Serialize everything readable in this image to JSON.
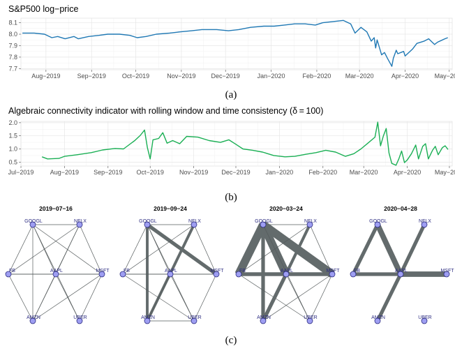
{
  "captions": {
    "a": "(a)",
    "b": "(b)",
    "c": "(c)"
  },
  "chart_data": [
    {
      "type": "line",
      "title": "S&P500 log−price",
      "x_tick_labels": [
        "Aug−2019",
        "Sep−2019",
        "Oct−2019",
        "Nov−2019",
        "Dec−2019",
        "Jan−2020",
        "Feb−2020",
        "Mar−2020",
        "Apr−2020",
        "May−2020"
      ],
      "x_tick_dates": [
        "2019-08-01",
        "2019-09-01",
        "2019-10-01",
        "2019-11-01",
        "2019-12-01",
        "2020-01-01",
        "2020-02-01",
        "2020-03-01",
        "2020-04-01",
        "2020-05-01"
      ],
      "xlim": [
        "2019-07-15",
        "2020-05-03"
      ],
      "y_tick_labels": [
        "7.7",
        "7.8",
        "7.9",
        "8.0",
        "8.1"
      ],
      "ylim": [
        7.69,
        8.14
      ],
      "color": "#1f78b4",
      "grid": true,
      "series": [
        {
          "points": [
            [
              "2019-07-16",
              8.01
            ],
            [
              "2019-07-24",
              8.01
            ],
            [
              "2019-07-31",
              8.0
            ],
            [
              "2019-08-05",
              7.97
            ],
            [
              "2019-08-09",
              7.98
            ],
            [
              "2019-08-14",
              7.96
            ],
            [
              "2019-08-20",
              7.98
            ],
            [
              "2019-08-23",
              7.96
            ],
            [
              "2019-08-30",
              7.98
            ],
            [
              "2019-09-06",
              7.99
            ],
            [
              "2019-09-12",
              8.0
            ],
            [
              "2019-09-20",
              8.0
            ],
            [
              "2019-09-27",
              7.99
            ],
            [
              "2019-10-02",
              7.97
            ],
            [
              "2019-10-08",
              7.98
            ],
            [
              "2019-10-15",
              8.0
            ],
            [
              "2019-10-24",
              8.01
            ],
            [
              "2019-10-31",
              8.02
            ],
            [
              "2019-11-08",
              8.03
            ],
            [
              "2019-11-15",
              8.04
            ],
            [
              "2019-11-25",
              8.04
            ],
            [
              "2019-12-03",
              8.03
            ],
            [
              "2019-12-10",
              8.04
            ],
            [
              "2019-12-18",
              8.06
            ],
            [
              "2019-12-27",
              8.07
            ],
            [
              "2020-01-03",
              8.07
            ],
            [
              "2020-01-10",
              8.08
            ],
            [
              "2020-01-17",
              8.09
            ],
            [
              "2020-01-24",
              8.09
            ],
            [
              "2020-01-31",
              8.08
            ],
            [
              "2020-02-05",
              8.1
            ],
            [
              "2020-02-12",
              8.11
            ],
            [
              "2020-02-19",
              8.12
            ],
            [
              "2020-02-24",
              8.09
            ],
            [
              "2020-02-27",
              8.01
            ],
            [
              "2020-03-02",
              8.06
            ],
            [
              "2020-03-06",
              8.02
            ],
            [
              "2020-03-09",
              7.94
            ],
            [
              "2020-03-11",
              7.97
            ],
            [
              "2020-03-12",
              7.88
            ],
            [
              "2020-03-13",
              7.95
            ],
            [
              "2020-03-16",
              7.82
            ],
            [
              "2020-03-18",
              7.84
            ],
            [
              "2020-03-20",
              7.79
            ],
            [
              "2020-03-23",
              7.72
            ],
            [
              "2020-03-24",
              7.79
            ],
            [
              "2020-03-26",
              7.86
            ],
            [
              "2020-03-27",
              7.83
            ],
            [
              "2020-03-31",
              7.85
            ],
            [
              "2020-04-01",
              7.81
            ],
            [
              "2020-04-06",
              7.87
            ],
            [
              "2020-04-09",
              7.92
            ],
            [
              "2020-04-14",
              7.94
            ],
            [
              "2020-04-17",
              7.96
            ],
            [
              "2020-04-21",
              7.91
            ],
            [
              "2020-04-23",
              7.93
            ],
            [
              "2020-04-28",
              7.96
            ],
            [
              "2020-04-30",
              7.97
            ]
          ]
        }
      ]
    },
    {
      "type": "line",
      "title": "Algebraic connectivity indicator with rolling window and time consistency (δ = 100)",
      "x_tick_labels": [
        "Jul−2019",
        "Aug−2019",
        "Sep−2019",
        "Oct−2019",
        "Nov−2019",
        "Dec−2019",
        "Jan−2020",
        "Feb−2020",
        "Mar−2020",
        "Apr−2020",
        "May−2020"
      ],
      "x_tick_dates": [
        "2019-07-01",
        "2019-08-01",
        "2019-09-01",
        "2019-10-01",
        "2019-11-01",
        "2019-12-01",
        "2020-01-01",
        "2020-02-01",
        "2020-03-01",
        "2020-04-01",
        "2020-05-01"
      ],
      "xlim": [
        "2019-07-01",
        "2020-05-03"
      ],
      "y_tick_labels": [
        "0.5",
        "1.0",
        "1.5",
        "2.0"
      ],
      "ylim": [
        0.35,
        2.05
      ],
      "color": "#1aaf54",
      "grid": true,
      "series": [
        {
          "points": [
            [
              "2019-07-16",
              0.7
            ],
            [
              "2019-07-20",
              0.62
            ],
            [
              "2019-07-28",
              0.64
            ],
            [
              "2019-08-01",
              0.72
            ],
            [
              "2019-08-10",
              0.78
            ],
            [
              "2019-08-20",
              0.86
            ],
            [
              "2019-08-28",
              0.96
            ],
            [
              "2019-09-06",
              1.02
            ],
            [
              "2019-09-12",
              1.0
            ],
            [
              "2019-09-17",
              1.2
            ],
            [
              "2019-09-20",
              1.32
            ],
            [
              "2019-09-24",
              1.52
            ],
            [
              "2019-09-27",
              1.72
            ],
            [
              "2019-09-29",
              1.05
            ],
            [
              "2019-10-01",
              0.62
            ],
            [
              "2019-10-03",
              1.35
            ],
            [
              "2019-10-07",
              1.4
            ],
            [
              "2019-10-10",
              1.62
            ],
            [
              "2019-10-13",
              1.22
            ],
            [
              "2019-10-17",
              1.32
            ],
            [
              "2019-10-22",
              1.2
            ],
            [
              "2019-10-27",
              1.48
            ],
            [
              "2019-11-04",
              1.45
            ],
            [
              "2019-11-12",
              1.32
            ],
            [
              "2019-11-20",
              1.25
            ],
            [
              "2019-11-26",
              1.35
            ],
            [
              "2019-12-01",
              1.18
            ],
            [
              "2019-12-06",
              1.0
            ],
            [
              "2019-12-13",
              0.95
            ],
            [
              "2019-12-20",
              0.88
            ],
            [
              "2019-12-28",
              0.75
            ],
            [
              "2020-01-05",
              0.7
            ],
            [
              "2020-01-12",
              0.72
            ],
            [
              "2020-01-20",
              0.8
            ],
            [
              "2020-01-27",
              0.86
            ],
            [
              "2020-02-03",
              0.95
            ],
            [
              "2020-02-10",
              0.88
            ],
            [
              "2020-02-17",
              0.72
            ],
            [
              "2020-02-23",
              0.82
            ],
            [
              "2020-02-28",
              1.0
            ],
            [
              "2020-03-04",
              1.22
            ],
            [
              "2020-03-09",
              1.45
            ],
            [
              "2020-03-11",
              2.02
            ],
            [
              "2020-03-13",
              1.12
            ],
            [
              "2020-03-15",
              1.5
            ],
            [
              "2020-03-17",
              1.78
            ],
            [
              "2020-03-19",
              0.85
            ],
            [
              "2020-03-21",
              0.45
            ],
            [
              "2020-03-24",
              0.38
            ],
            [
              "2020-03-26",
              0.62
            ],
            [
              "2020-03-28",
              0.92
            ],
            [
              "2020-03-30",
              0.48
            ],
            [
              "2020-04-01",
              0.58
            ],
            [
              "2020-04-04",
              0.82
            ],
            [
              "2020-04-07",
              1.15
            ],
            [
              "2020-04-09",
              0.62
            ],
            [
              "2020-04-12",
              1.1
            ],
            [
              "2020-04-14",
              1.2
            ],
            [
              "2020-04-16",
              0.62
            ],
            [
              "2020-04-19",
              0.95
            ],
            [
              "2020-04-21",
              1.1
            ],
            [
              "2020-04-23",
              0.78
            ],
            [
              "2020-04-26",
              1.05
            ],
            [
              "2020-04-28",
              1.12
            ],
            [
              "2020-04-30",
              0.98
            ]
          ]
        }
      ]
    }
  ],
  "networks": {
    "nodes": [
      "GOOGL",
      "NFLX",
      "FB",
      "AAPL",
      "MSFT",
      "AMZN",
      "UBER"
    ],
    "graphs": [
      {
        "title": "2019−07−16",
        "edges": [
          [
            "GOOGL",
            "NFLX",
            1
          ],
          [
            "GOOGL",
            "FB",
            1
          ],
          [
            "GOOGL",
            "AAPL",
            1
          ],
          [
            "GOOGL",
            "MSFT",
            1
          ],
          [
            "GOOGL",
            "AMZN",
            1
          ],
          [
            "GOOGL",
            "UBER",
            1
          ],
          [
            "NFLX",
            "FB",
            1
          ],
          [
            "NFLX",
            "AAPL",
            1
          ],
          [
            "NFLX",
            "MSFT",
            1
          ],
          [
            "NFLX",
            "AMZN",
            1
          ],
          [
            "FB",
            "AAPL",
            1
          ],
          [
            "FB",
            "MSFT",
            1
          ],
          [
            "FB",
            "AMZN",
            1
          ],
          [
            "AAPL",
            "MSFT",
            1
          ],
          [
            "AAPL",
            "AMZN",
            1
          ],
          [
            "AAPL",
            "UBER",
            1
          ],
          [
            "MSFT",
            "AMZN",
            1
          ],
          [
            "MSFT",
            "UBER",
            1
          ]
        ]
      },
      {
        "title": "2019−09−24",
        "edges": [
          [
            "GOOGL",
            "NFLX",
            1
          ],
          [
            "GOOGL",
            "FB",
            1
          ],
          [
            "GOOGL",
            "AAPL",
            1
          ],
          [
            "GOOGL",
            "MSFT",
            4
          ],
          [
            "GOOGL",
            "AMZN",
            3
          ],
          [
            "GOOGL",
            "UBER",
            1
          ],
          [
            "NFLX",
            "FB",
            1
          ],
          [
            "NFLX",
            "AAPL",
            1
          ],
          [
            "NFLX",
            "MSFT",
            1
          ],
          [
            "NFLX",
            "AMZN",
            3
          ],
          [
            "FB",
            "AAPL",
            1
          ],
          [
            "FB",
            "MSFT",
            1
          ],
          [
            "FB",
            "UBER",
            1
          ],
          [
            "AAPL",
            "MSFT",
            1
          ],
          [
            "AAPL",
            "AMZN",
            1
          ],
          [
            "AAPL",
            "UBER",
            1
          ],
          [
            "MSFT",
            "UBER",
            1
          ],
          [
            "AMZN",
            "UBER",
            1
          ]
        ]
      },
      {
        "title": "2020−03−24",
        "edges": [
          [
            "GOOGL",
            "NFLX",
            1
          ],
          [
            "GOOGL",
            "FB",
            9
          ],
          [
            "GOOGL",
            "AAPL",
            9
          ],
          [
            "GOOGL",
            "MSFT",
            9
          ],
          [
            "GOOGL",
            "AMZN",
            4
          ],
          [
            "GOOGL",
            "UBER",
            1
          ],
          [
            "NFLX",
            "FB",
            1
          ],
          [
            "NFLX",
            "AAPL",
            3
          ],
          [
            "NFLX",
            "MSFT",
            1
          ],
          [
            "NFLX",
            "AMZN",
            3
          ],
          [
            "FB",
            "AAPL",
            4
          ],
          [
            "FB",
            "MSFT",
            4
          ],
          [
            "FB",
            "UBER",
            1
          ],
          [
            "AAPL",
            "MSFT",
            4
          ],
          [
            "AAPL",
            "AMZN",
            4
          ],
          [
            "AAPL",
            "UBER",
            1
          ],
          [
            "MSFT",
            "AMZN",
            1
          ],
          [
            "MSFT",
            "UBER",
            1
          ]
        ]
      },
      {
        "title": "2020−04−28",
        "edges": [
          [
            "GOOGL",
            "FB",
            4
          ],
          [
            "GOOGL",
            "AAPL",
            6
          ],
          [
            "NFLX",
            "AAPL",
            4
          ],
          [
            "FB",
            "AAPL",
            4
          ],
          [
            "AAPL",
            "MSFT",
            6
          ],
          [
            "AAPL",
            "AMZN",
            4
          ]
        ]
      }
    ]
  }
}
